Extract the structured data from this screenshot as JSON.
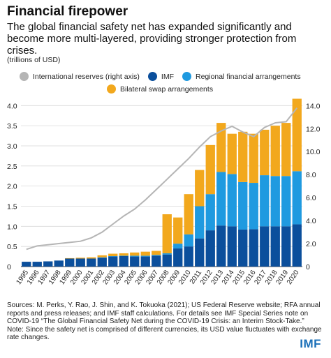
{
  "title": "Financial firepower",
  "subtitle": "The global financial safety net has expanded significantly and become more multi-layered, providing stronger protection from crises.",
  "units": "(trillions of USD)",
  "sources": "Sources: M. Perks, Y. Rao, J. Shin, and K. Tokuoka (2021); US Federal Reserve website; RFA annual reports and press releases; and IMF staff calculations. For details see IMF Special Series note on COVID-19 “The Global Financial Safety Net during the COVID-19 Crisis: an Interim Stock-Take.” Note: Since the safety net is comprised of different currencies, its USD value fluctuates with exchange rate changes.",
  "logo": "IMF",
  "colors": {
    "imf": "#0b4f9c",
    "rfa": "#1f9ae0",
    "bsa": "#f2a81d",
    "reserves": "#b5b5b5"
  },
  "chart_data": {
    "type": "bar",
    "stacked": true,
    "categories": [
      "1995",
      "1996",
      "1997",
      "1998",
      "1999",
      "2000",
      "2001",
      "2002",
      "2003",
      "2004",
      "2005",
      "2006",
      "2007",
      "2008",
      "2009",
      "2010",
      "2011",
      "2012",
      "2013",
      "2014",
      "2015",
      "2016",
      "2017",
      "2018",
      "2019",
      "2020"
    ],
    "series": [
      {
        "name": "IMF",
        "values": [
          0.12,
          0.12,
          0.13,
          0.15,
          0.2,
          0.2,
          0.2,
          0.22,
          0.25,
          0.26,
          0.25,
          0.25,
          0.27,
          0.3,
          0.45,
          0.5,
          0.7,
          0.9,
          1.02,
          1.0,
          0.92,
          0.93,
          1.0,
          1.0,
          1.0,
          1.05
        ]
      },
      {
        "name": "Regional financial arrangements",
        "values": [
          0.0,
          0.0,
          0.0,
          0.0,
          0.0,
          0.0,
          0.0,
          0.01,
          0.01,
          0.01,
          0.02,
          0.02,
          0.02,
          0.03,
          0.12,
          0.3,
          0.8,
          0.9,
          1.33,
          1.3,
          1.18,
          1.15,
          1.27,
          1.25,
          1.25,
          1.32
        ]
      },
      {
        "name": "Bilateral swap arrangements",
        "values": [
          0.0,
          0.0,
          0.0,
          0.0,
          0.01,
          0.02,
          0.03,
          0.05,
          0.06,
          0.06,
          0.08,
          0.1,
          0.1,
          0.97,
          0.65,
          1.0,
          0.9,
          1.22,
          1.22,
          1.0,
          1.25,
          1.22,
          1.13,
          1.25,
          1.32,
          1.8
        ]
      },
      {
        "name": "International reserves (right axis)",
        "type": "line",
        "axis": "right",
        "values": [
          1.5,
          1.8,
          1.9,
          2.0,
          2.1,
          2.2,
          2.5,
          3.0,
          3.7,
          4.4,
          5.0,
          5.8,
          6.7,
          7.6,
          8.5,
          9.4,
          10.4,
          11.3,
          11.8,
          12.2,
          11.7,
          11.3,
          12.1,
          12.5,
          12.6,
          13.8
        ]
      }
    ],
    "ylim": [
      0,
      4.3
    ],
    "yticks": [
      "0",
      "0.5",
      "1.0",
      "1.5",
      "2.0",
      "2.5",
      "3.0",
      "3.5",
      "4.0"
    ],
    "ylim_right": [
      0,
      15.05
    ],
    "yticks_right": [
      "0",
      "2.0",
      "4.0",
      "6.0",
      "8.0",
      "10.0",
      "12.0",
      "14.0"
    ],
    "grid": true,
    "legend": {
      "entries": [
        "International reserves (right axis)",
        "IMF",
        "Regional financial arrangements",
        "Bilateral swap arrangements"
      ],
      "placement": "top"
    }
  }
}
